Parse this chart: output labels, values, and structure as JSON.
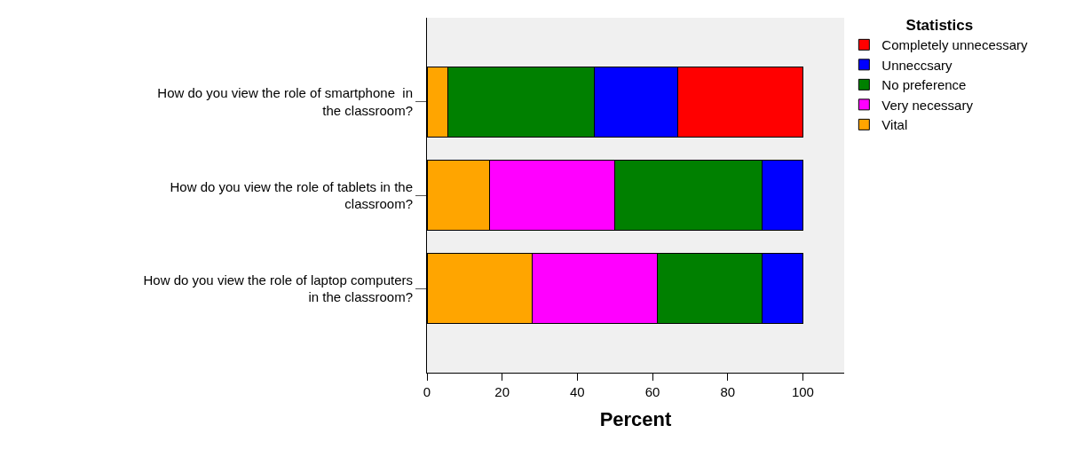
{
  "chart_data": {
    "type": "bar",
    "orientation": "horizontal",
    "stacked": true,
    "xlabel": "Percent",
    "legend_title": "Statistics",
    "legend": "top right",
    "categories": [
      "How do you view the role of smartphone  in the classroom?",
      "How do you view the role of tablets in the classroom?",
      "How do you view the role of laptop computers in the classroom?"
    ],
    "series": [
      {
        "name": "Vital",
        "color": "#ffa500",
        "values": [
          5.6,
          16.6,
          27.9
        ]
      },
      {
        "name": "Very necessary",
        "color": "#ff00ff",
        "values": [
          null,
          33.4,
          33.4
        ]
      },
      {
        "name": "No preference",
        "color": "#008000",
        "values": [
          38.9,
          39.1,
          27.8
        ]
      },
      {
        "name": "Unneccsary",
        "color": "#0000ff",
        "values": [
          22.3,
          10.9,
          10.9
        ]
      },
      {
        "name": "Completely unnecessary",
        "color": "#ff0000",
        "values": [
          33.2,
          null,
          null
        ]
      }
    ],
    "xlim": [
      0,
      111
    ],
    "xticks": [
      0,
      20,
      40,
      60,
      80,
      100
    ],
    "grid": false
  }
}
